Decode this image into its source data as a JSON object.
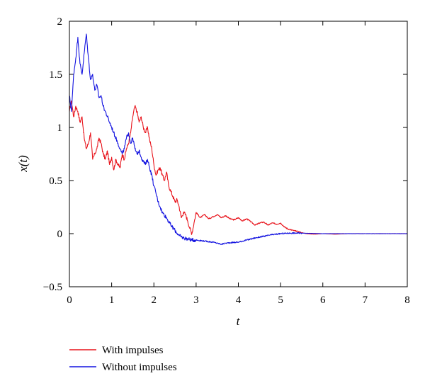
{
  "chart_data": {
    "type": "line",
    "title": "",
    "xlabel": "t",
    "ylabel": "x(t)",
    "xlim": [
      0,
      8
    ],
    "ylim": [
      -0.5,
      2
    ],
    "x_ticks": [
      0,
      1,
      2,
      3,
      4,
      5,
      6,
      7,
      8
    ],
    "x_tick_labels": [
      "0",
      "1",
      "2",
      "3",
      "4",
      "5",
      "6",
      "7",
      "8"
    ],
    "y_ticks": [
      -0.5,
      0,
      0.5,
      1,
      1.5,
      2
    ],
    "y_tick_labels": [
      "−0.5",
      "0",
      "0.5",
      "1",
      "1.5",
      "2"
    ],
    "grid": false,
    "legend_position": "bottom-left, below plot",
    "series": [
      {
        "name": "With impulses",
        "color": "#e8141c",
        "x": [
          0,
          0.05,
          0.1,
          0.15,
          0.2,
          0.25,
          0.3,
          0.35,
          0.4,
          0.45,
          0.5,
          0.55,
          0.6,
          0.65,
          0.7,
          0.75,
          0.8,
          0.85,
          0.9,
          0.95,
          1.0,
          1.05,
          1.1,
          1.15,
          1.2,
          1.25,
          1.3,
          1.35,
          1.4,
          1.45,
          1.5,
          1.55,
          1.6,
          1.65,
          1.7,
          1.75,
          1.8,
          1.85,
          1.9,
          1.95,
          2.0,
          2.05,
          2.1,
          2.15,
          2.2,
          2.25,
          2.3,
          2.35,
          2.4,
          2.45,
          2.5,
          2.55,
          2.6,
          2.65,
          2.7,
          2.75,
          2.8,
          2.85,
          2.9,
          2.95,
          3.0,
          3.1,
          3.2,
          3.3,
          3.4,
          3.5,
          3.6,
          3.7,
          3.8,
          3.9,
          4.0,
          4.1,
          4.2,
          4.3,
          4.4,
          4.5,
          4.6,
          4.7,
          4.8,
          4.9,
          5.0,
          5.1,
          5.2,
          5.3,
          5.4,
          5.5,
          5.6,
          5.8,
          6.0,
          6.3,
          6.6,
          7.0,
          7.5,
          8.0
        ],
        "values": [
          1.15,
          1.25,
          1.1,
          1.2,
          1.15,
          1.05,
          1.1,
          0.9,
          0.8,
          0.85,
          0.95,
          0.7,
          0.75,
          0.8,
          0.9,
          0.85,
          0.75,
          0.7,
          0.78,
          0.65,
          0.72,
          0.6,
          0.7,
          0.65,
          0.62,
          0.75,
          0.7,
          0.8,
          0.85,
          0.95,
          1.1,
          1.2,
          1.15,
          1.05,
          1.1,
          1.0,
          0.95,
          1.0,
          0.88,
          0.8,
          0.65,
          0.55,
          0.6,
          0.62,
          0.55,
          0.5,
          0.58,
          0.45,
          0.4,
          0.35,
          0.3,
          0.32,
          0.25,
          0.15,
          0.2,
          0.18,
          0.12,
          0.05,
          0.0,
          0.1,
          0.2,
          0.15,
          0.18,
          0.14,
          0.16,
          0.18,
          0.15,
          0.17,
          0.14,
          0.13,
          0.15,
          0.12,
          0.14,
          0.11,
          0.08,
          0.1,
          0.11,
          0.08,
          0.1,
          0.09,
          0.1,
          0.06,
          0.04,
          0.03,
          0.02,
          0.01,
          0.0,
          -0.005,
          0.0,
          -0.005,
          0.0,
          0.0,
          0.0,
          0.0
        ]
      },
      {
        "name": "Without impulses",
        "color": "#1414e0",
        "x": [
          0,
          0.05,
          0.1,
          0.15,
          0.2,
          0.25,
          0.3,
          0.35,
          0.4,
          0.45,
          0.5,
          0.55,
          0.6,
          0.65,
          0.7,
          0.75,
          0.8,
          0.85,
          0.9,
          0.95,
          1.0,
          1.05,
          1.1,
          1.15,
          1.2,
          1.25,
          1.3,
          1.35,
          1.4,
          1.45,
          1.5,
          1.55,
          1.6,
          1.65,
          1.7,
          1.75,
          1.8,
          1.85,
          1.9,
          1.95,
          2.0,
          2.05,
          2.1,
          2.15,
          2.2,
          2.3,
          2.4,
          2.5,
          2.6,
          2.7,
          2.8,
          2.9,
          3.0,
          3.2,
          3.4,
          3.6,
          3.7,
          3.8,
          4.0,
          4.2,
          4.4,
          4.6,
          4.8,
          5.0,
          5.2,
          5.5,
          6.0,
          6.5,
          7.0,
          7.5,
          8.0
        ],
        "values": [
          1.3,
          1.15,
          1.5,
          1.65,
          1.85,
          1.6,
          1.5,
          1.7,
          1.88,
          1.65,
          1.45,
          1.5,
          1.35,
          1.4,
          1.28,
          1.3,
          1.2,
          1.15,
          1.1,
          1.05,
          1.0,
          0.95,
          0.9,
          0.85,
          0.8,
          0.75,
          0.8,
          0.9,
          0.95,
          0.85,
          0.9,
          0.8,
          0.75,
          0.78,
          0.72,
          0.68,
          0.65,
          0.7,
          0.62,
          0.55,
          0.45,
          0.38,
          0.3,
          0.25,
          0.2,
          0.15,
          0.08,
          0.03,
          -0.02,
          -0.04,
          -0.05,
          -0.06,
          -0.06,
          -0.07,
          -0.08,
          -0.1,
          -0.09,
          -0.085,
          -0.08,
          -0.06,
          -0.04,
          -0.025,
          -0.01,
          0.0,
          0.005,
          0.005,
          0.0,
          0.0,
          0.0,
          0.0,
          0.0
        ]
      }
    ]
  }
}
